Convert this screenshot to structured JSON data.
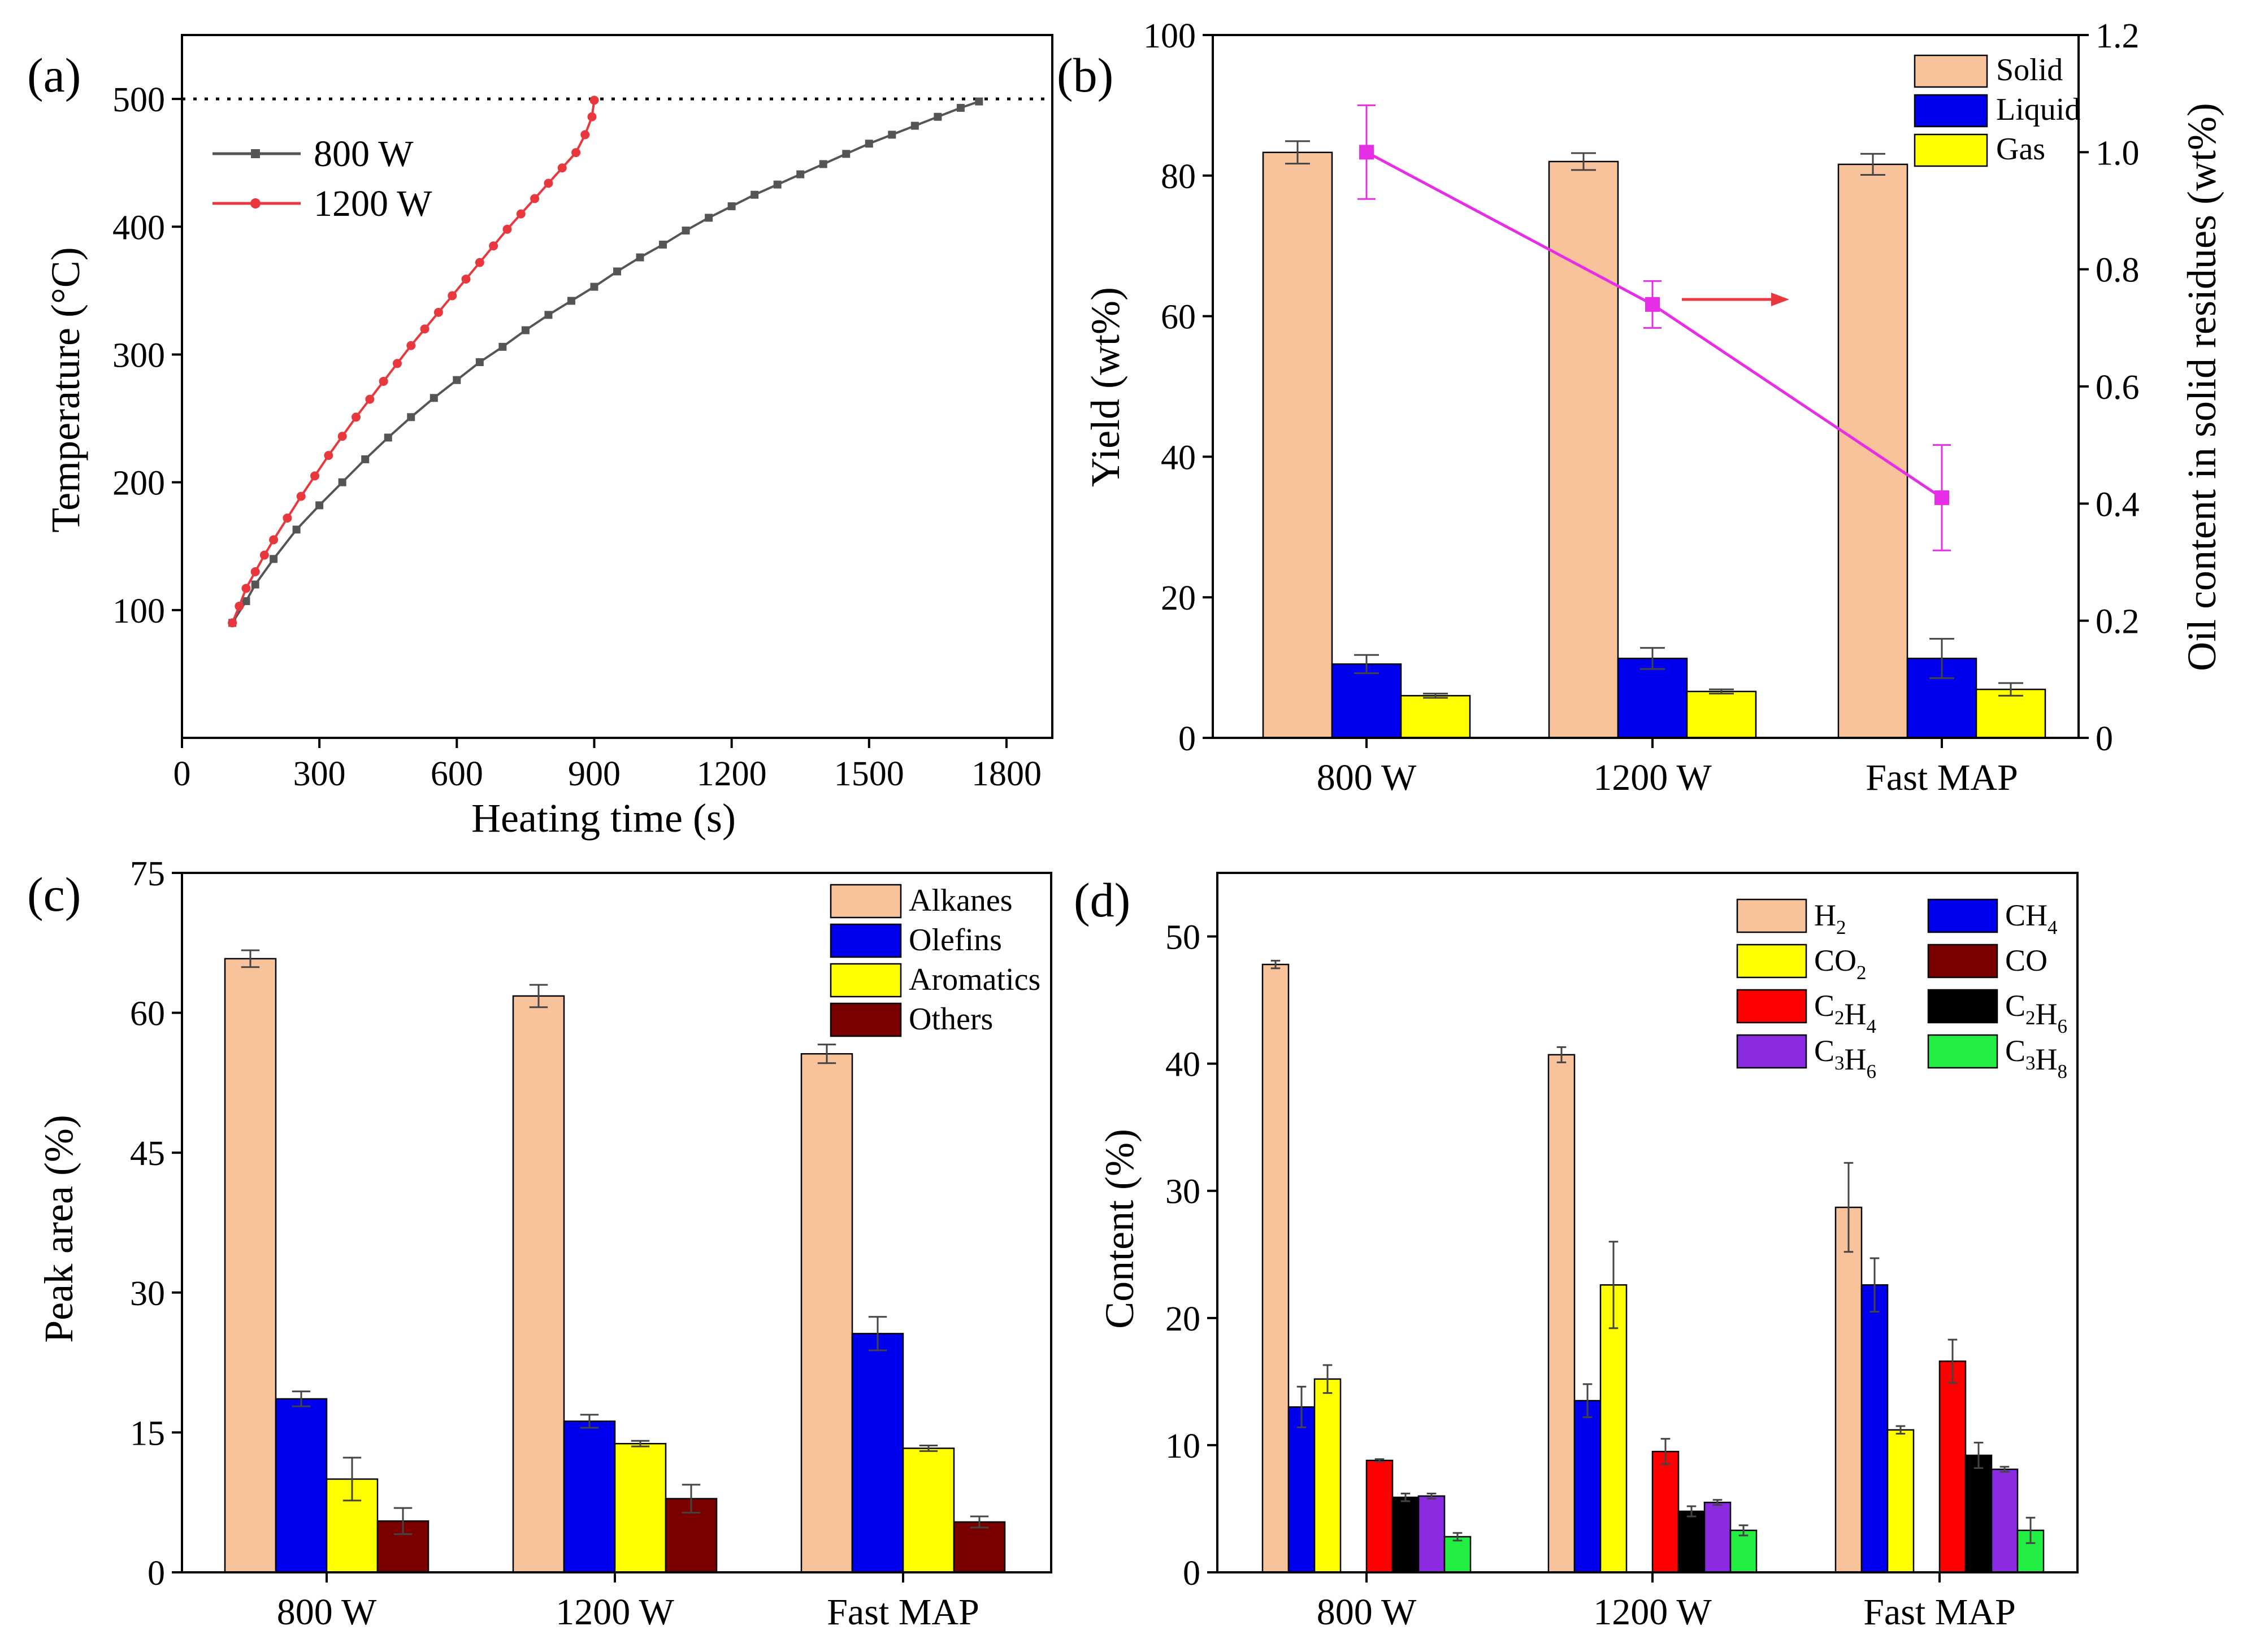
{
  "chart_data": [
    {
      "panel": "(a)",
      "type": "line",
      "xlabel": "Heating time (s)",
      "ylabel": "Temperature (°C)",
      "xlim": [
        0,
        1900
      ],
      "ylim": [
        0,
        550
      ],
      "xticks": [
        "0",
        "300",
        "600",
        "900",
        "1200",
        "1500",
        "1800"
      ],
      "yticks": [
        "100",
        "200",
        "300",
        "400",
        "500"
      ],
      "reference_line": 500,
      "series": [
        {
          "name": "800 W",
          "color": "#555555",
          "marker": "square",
          "points": [
            [
              110,
              90
            ],
            [
              140,
              107
            ],
            [
              160,
              120
            ],
            [
              200,
              140
            ],
            [
              250,
              163
            ],
            [
              300,
              182
            ],
            [
              350,
              200
            ],
            [
              400,
              218
            ],
            [
              450,
              235
            ],
            [
              500,
              251
            ],
            [
              550,
              266
            ],
            [
              600,
              280
            ],
            [
              650,
              294
            ],
            [
              700,
              306
            ],
            [
              750,
              319
            ],
            [
              800,
              331
            ],
            [
              850,
              342
            ],
            [
              900,
              353
            ],
            [
              950,
              365
            ],
            [
              1000,
              376
            ],
            [
              1050,
              386
            ],
            [
              1100,
              397
            ],
            [
              1150,
              407
            ],
            [
              1200,
              416
            ],
            [
              1250,
              425
            ],
            [
              1300,
              433
            ],
            [
              1350,
              441
            ],
            [
              1400,
              449
            ],
            [
              1450,
              457
            ],
            [
              1500,
              465
            ],
            [
              1550,
              472
            ],
            [
              1600,
              479
            ],
            [
              1650,
              486
            ],
            [
              1700,
              493
            ],
            [
              1740,
              498
            ]
          ]
        },
        {
          "name": "1200 W",
          "color": "#e8383d",
          "marker": "circle",
          "points": [
            [
              110,
              90
            ],
            [
              125,
              103
            ],
            [
              140,
              117
            ],
            [
              160,
              130
            ],
            [
              180,
              143
            ],
            [
              200,
              155
            ],
            [
              230,
              172
            ],
            [
              260,
              189
            ],
            [
              290,
              205
            ],
            [
              320,
              221
            ],
            [
              350,
              236
            ],
            [
              380,
              251
            ],
            [
              410,
              265
            ],
            [
              440,
              279
            ],
            [
              470,
              293
            ],
            [
              500,
              307
            ],
            [
              530,
              320
            ],
            [
              560,
              333
            ],
            [
              590,
              346
            ],
            [
              620,
              359
            ],
            [
              650,
              372
            ],
            [
              680,
              385
            ],
            [
              710,
              398
            ],
            [
              740,
              410
            ],
            [
              770,
              422
            ],
            [
              800,
              434
            ],
            [
              830,
              446
            ],
            [
              860,
              458
            ],
            [
              880,
              472
            ],
            [
              895,
              486
            ],
            [
              900,
              499
            ]
          ]
        }
      ]
    },
    {
      "panel": "(b)",
      "type": "bar",
      "categories": [
        "800 W",
        "1200 W",
        "Fast MAP"
      ],
      "ylabel": "Yield (wt%)",
      "ylim": [
        0,
        100
      ],
      "yticks": [
        "0",
        "20",
        "40",
        "60",
        "80",
        "100"
      ],
      "y2label": "Oil content in solid residues (wt%)",
      "y2lim": [
        0,
        1.2
      ],
      "y2ticks": [
        "0",
        "0.2",
        "0.4",
        "0.6",
        "0.8",
        "1.0",
        "1.2"
      ],
      "series": [
        {
          "name": "Solid",
          "color": "#f8c39a",
          "values": [
            83.3,
            82.0,
            81.6
          ],
          "errors": [
            1.6,
            1.2,
            1.5
          ]
        },
        {
          "name": "Liquid",
          "color": "#0000ee",
          "values": [
            10.5,
            11.3,
            11.3
          ],
          "errors": [
            1.3,
            1.5,
            2.8
          ]
        },
        {
          "name": "Gas",
          "color": "#ffff00",
          "values": [
            6.0,
            6.6,
            6.9
          ],
          "errors": [
            0.3,
            0.3,
            0.9
          ]
        }
      ],
      "secondary_series": {
        "name": "Oil content in solid residues",
        "color": "#e62ee6",
        "values": [
          1.0,
          0.74,
          0.41
        ],
        "errors": [
          0.08,
          0.04,
          0.09
        ]
      }
    },
    {
      "panel": "(c)",
      "type": "bar",
      "categories": [
        "800 W",
        "1200 W",
        "Fast MAP"
      ],
      "ylabel": "Peak area (%)",
      "ylim": [
        0,
        75
      ],
      "yticks": [
        "0",
        "15",
        "30",
        "45",
        "60",
        "75"
      ],
      "series": [
        {
          "name": "Alkanes",
          "color": "#f8c39a",
          "values": [
            65.8,
            61.8,
            55.6
          ],
          "errors": [
            0.9,
            1.2,
            1.0
          ]
        },
        {
          "name": "Olefins",
          "color": "#0000ee",
          "values": [
            18.6,
            16.2,
            25.6
          ],
          "errors": [
            0.8,
            0.7,
            1.8
          ]
        },
        {
          "name": "Aromatics",
          "color": "#ffff00",
          "values": [
            10.0,
            13.8,
            13.3
          ],
          "errors": [
            2.3,
            0.3,
            0.3
          ]
        },
        {
          "name": "Others",
          "color": "#7a0000",
          "values": [
            5.5,
            7.9,
            5.4
          ],
          "errors": [
            1.4,
            1.5,
            0.6
          ]
        }
      ]
    },
    {
      "panel": "(d)",
      "type": "bar",
      "categories": [
        "800 W",
        "1200 W",
        "Fast MAP"
      ],
      "ylabel": "Content (%)",
      "ylim": [
        0,
        55
      ],
      "yticks": [
        "0",
        "10",
        "20",
        "30",
        "40",
        "50"
      ],
      "series": [
        {
          "name": "H",
          "sub": "2",
          "color": "#f8c39a",
          "values": [
            47.8,
            40.7,
            28.7
          ],
          "errors": [
            0.3,
            0.6,
            3.5
          ]
        },
        {
          "name": "CH",
          "sub": "4",
          "color": "#0000ee",
          "values": [
            13.0,
            13.5,
            22.6
          ],
          "errors": [
            1.6,
            1.3,
            2.1
          ]
        },
        {
          "name": "CO",
          "sub": "2",
          "color": "#ffff00",
          "values": [
            15.2,
            22.6,
            11.2
          ],
          "errors": [
            1.1,
            3.4,
            0.3
          ]
        },
        {
          "name": "CO",
          "sub": "",
          "color": "#7a0000",
          "values": [
            0,
            0,
            0
          ],
          "errors": [
            0,
            0,
            0
          ]
        },
        {
          "name": "C",
          "sub": "2",
          "tail": "H",
          "sub2": "4",
          "color": "#ff0000",
          "values": [
            8.8,
            9.5,
            16.6
          ],
          "errors": [
            0.1,
            1.0,
            1.7
          ]
        },
        {
          "name": "C",
          "sub": "2",
          "tail": "H",
          "sub2": "6",
          "color": "#000000",
          "values": [
            5.9,
            4.8,
            9.2
          ],
          "errors": [
            0.3,
            0.4,
            1.0
          ]
        },
        {
          "name": "C",
          "sub": "3",
          "tail": "H",
          "sub2": "6",
          "color": "#8a2be2",
          "values": [
            6.0,
            5.5,
            8.1
          ],
          "errors": [
            0.2,
            0.2,
            0.2
          ]
        },
        {
          "name": "C",
          "sub": "3",
          "tail": "H",
          "sub2": "8",
          "color": "#22ee44",
          "values": [
            2.8,
            3.3,
            3.3
          ],
          "errors": [
            0.3,
            0.4,
            1.0
          ]
        }
      ]
    }
  ]
}
